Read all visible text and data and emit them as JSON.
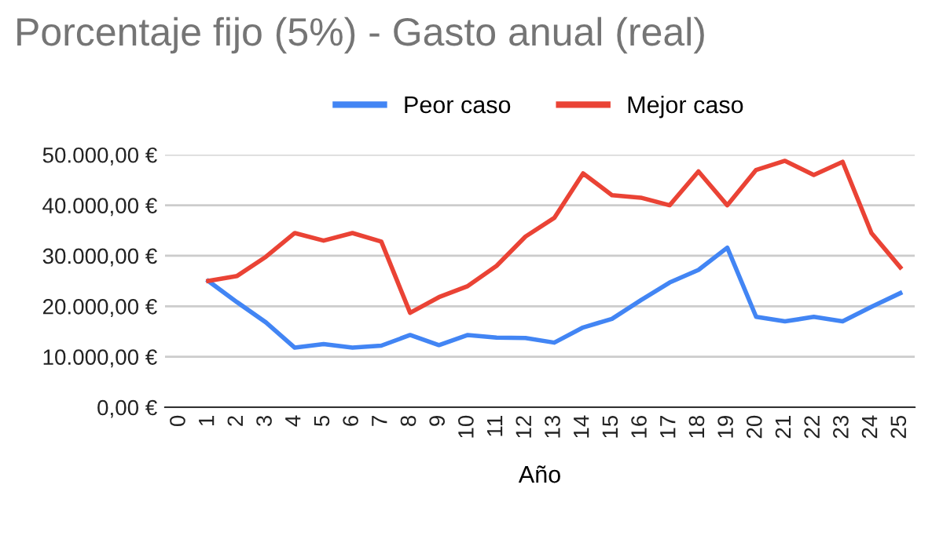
{
  "chart_data": {
    "type": "line",
    "title": "Porcentaje fijo (5%) - Gasto anual (real)",
    "xlabel": "Año",
    "categories": [
      "0",
      "1",
      "2",
      "3",
      "4",
      "5",
      "6",
      "7",
      "8",
      "9",
      "10",
      "11",
      "12",
      "13",
      "14",
      "15",
      "16",
      "17",
      "18",
      "19",
      "20",
      "21",
      "22",
      "23",
      "24",
      "25"
    ],
    "series": [
      {
        "name": "Peor caso",
        "color": "#4285f4",
        "values": [
          null,
          25000,
          20800,
          16800,
          11800,
          12500,
          11800,
          12200,
          14300,
          12300,
          14300,
          13800,
          13700,
          12800,
          15800,
          17500,
          21200,
          24700,
          27200,
          31600,
          17900,
          17000,
          17900,
          17000,
          19900,
          22600
        ]
      },
      {
        "name": "Mejor caso",
        "color": "#ea4335",
        "values": [
          null,
          25000,
          26000,
          29800,
          34500,
          33000,
          34500,
          32800,
          18700,
          21800,
          24000,
          28000,
          33800,
          37500,
          46300,
          42000,
          41500,
          40000,
          46700,
          40000,
          47000,
          48800,
          46000,
          48600,
          34500,
          27700
        ]
      }
    ],
    "ylim": [
      0,
      50000
    ],
    "yticks": [
      {
        "value": 0,
        "label": "0,00 €"
      },
      {
        "value": 10000,
        "label": "10.000,00 €"
      },
      {
        "value": 20000,
        "label": "20.000,00 €"
      },
      {
        "value": 30000,
        "label": "30.000,00 €"
      },
      {
        "value": 40000,
        "label": "40.000,00 €"
      },
      {
        "value": 50000,
        "label": "50.000,00 €"
      }
    ],
    "grid": "y",
    "legend": "top",
    "marker": "none",
    "line_style": "solid"
  }
}
